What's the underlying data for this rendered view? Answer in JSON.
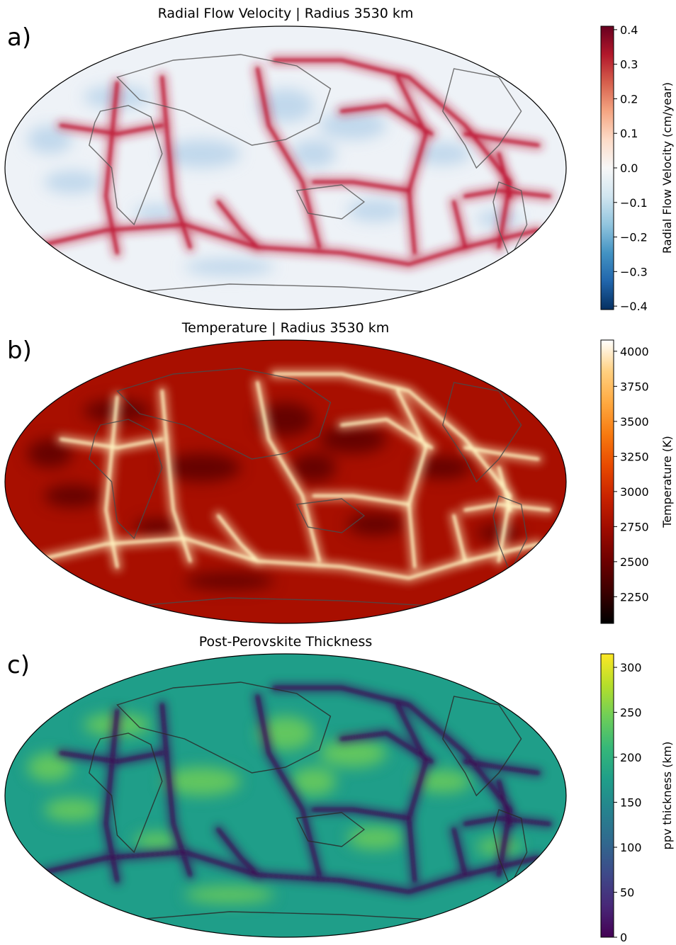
{
  "panels": [
    {
      "id": "velocity",
      "letter": "a)",
      "title": "Radial Flow Velocity | Radius 3530 km",
      "colorbar": {
        "label": "Radial Flow Velocity (cm/year)",
        "ticks": [
          "0.4",
          "0.3",
          "0.2",
          "0.1",
          "0.0",
          "−0.1",
          "−0.2",
          "−0.3",
          "−0.4"
        ],
        "tick_values": [
          0.4,
          0.3,
          0.2,
          0.1,
          0.0,
          -0.1,
          -0.2,
          -0.3,
          -0.4
        ],
        "min": -0.41,
        "max": 0.41,
        "colormap": [
          "#053061",
          "#2166ac",
          "#4393c3",
          "#92c5de",
          "#d1e5f0",
          "#f7f7f7",
          "#fddbc7",
          "#f4a582",
          "#d6604d",
          "#b2182b",
          "#67001f"
        ]
      },
      "map": {
        "background": "#eef2f7",
        "feature_color": "#c0203a",
        "blob_color": "#b9d4ea",
        "line_color": "#5a5a5a"
      }
    },
    {
      "id": "temperature",
      "letter": "b)",
      "title": "Temperature | Radius 3530 km",
      "colorbar": {
        "label": "Temperature (K)",
        "ticks": [
          "4000",
          "3750",
          "3500",
          "3250",
          "3000",
          "2750",
          "2500",
          "2250"
        ],
        "tick_values": [
          4000,
          3750,
          3500,
          3250,
          3000,
          2750,
          2500,
          2250
        ],
        "min": 2060,
        "max": 4080,
        "colormap": [
          "#000000",
          "#3b0000",
          "#6e0000",
          "#9e0b00",
          "#c82200",
          "#e84a00",
          "#f77a10",
          "#ffa940",
          "#ffd080",
          "#ffffff"
        ]
      },
      "map": {
        "background": "#a80f00",
        "feature_color": "#fff2c0",
        "blob_color": "#5a0000",
        "line_color": "#4a4a4a"
      }
    },
    {
      "id": "ppv",
      "letter": "c)",
      "title": "Post-Perovskite Thickness",
      "colorbar": {
        "label": "ppv thickness (km)",
        "ticks": [
          "300",
          "250",
          "200",
          "150",
          "100",
          "50",
          "0"
        ],
        "tick_values": [
          300,
          250,
          200,
          150,
          100,
          50,
          0
        ],
        "min": 0,
        "max": 315,
        "colormap": [
          "#440154",
          "#482878",
          "#3e4989",
          "#31688e",
          "#26828e",
          "#1f9e89",
          "#35b779",
          "#6ece58",
          "#b5de2b",
          "#fde725"
        ]
      },
      "map": {
        "background": "#1f9e89",
        "feature_color": "#3b0a55",
        "blob_color": "#6ece58",
        "line_color": "#2a2a2a"
      }
    }
  ]
}
